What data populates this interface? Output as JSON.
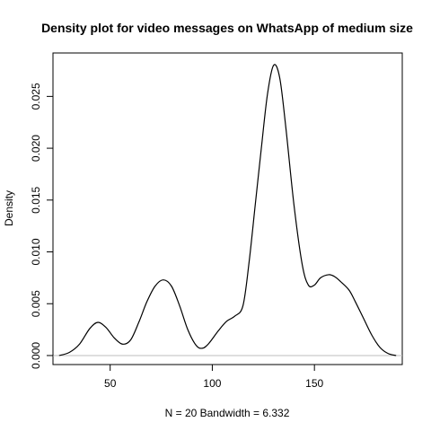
{
  "chart_data": {
    "type": "line",
    "title": "Density plot for video messages on WhatsApp of medium size",
    "xlabel": "N = 20   Bandwidth = 6.332",
    "ylabel": "Density",
    "xlim": [
      22,
      193
    ],
    "ylim": [
      -0.00087,
      0.02919
    ],
    "x_ticks": [
      50,
      100,
      150
    ],
    "x_tick_labels": [
      "50",
      "100",
      "150"
    ],
    "y_ticks": [
      0.0,
      0.005,
      0.01,
      0.015,
      0.02,
      0.025
    ],
    "y_tick_labels": [
      "0.000",
      "0.005",
      "0.010",
      "0.015",
      "0.020",
      "0.025"
    ],
    "baseline": 0,
    "grid": false,
    "series": [
      {
        "points": [
          [
            25,
            0.0
          ],
          [
            30,
            0.0003
          ],
          [
            35,
            0.0011
          ],
          [
            40,
            0.0026
          ],
          [
            44,
            0.0032
          ],
          [
            48,
            0.0027
          ],
          [
            52,
            0.0017
          ],
          [
            56,
            0.0011
          ],
          [
            60,
            0.0015
          ],
          [
            64,
            0.0032
          ],
          [
            68,
            0.0052
          ],
          [
            72,
            0.0067
          ],
          [
            76,
            0.0073
          ],
          [
            80,
            0.0067
          ],
          [
            84,
            0.0048
          ],
          [
            88,
            0.0025
          ],
          [
            92,
            0.001
          ],
          [
            95,
            0.0007
          ],
          [
            98,
            0.0011
          ],
          [
            103,
            0.0024
          ],
          [
            107,
            0.0033
          ],
          [
            111,
            0.0038
          ],
          [
            115,
            0.0048
          ],
          [
            118,
            0.009
          ],
          [
            121,
            0.0145
          ],
          [
            124,
            0.02
          ],
          [
            127,
            0.0252
          ],
          [
            130,
            0.028
          ],
          [
            133,
            0.0268
          ],
          [
            136,
            0.022
          ],
          [
            140,
            0.0145
          ],
          [
            144,
            0.0088
          ],
          [
            147,
            0.0068
          ],
          [
            150,
            0.0068
          ],
          [
            153,
            0.0075
          ],
          [
            157,
            0.0078
          ],
          [
            160,
            0.0076
          ],
          [
            163,
            0.0071
          ],
          [
            167,
            0.0063
          ],
          [
            170,
            0.0052
          ],
          [
            174,
            0.0036
          ],
          [
            178,
            0.002
          ],
          [
            182,
            0.0008
          ],
          [
            186,
            0.0002
          ],
          [
            190,
            0.0
          ]
        ]
      }
    ]
  }
}
